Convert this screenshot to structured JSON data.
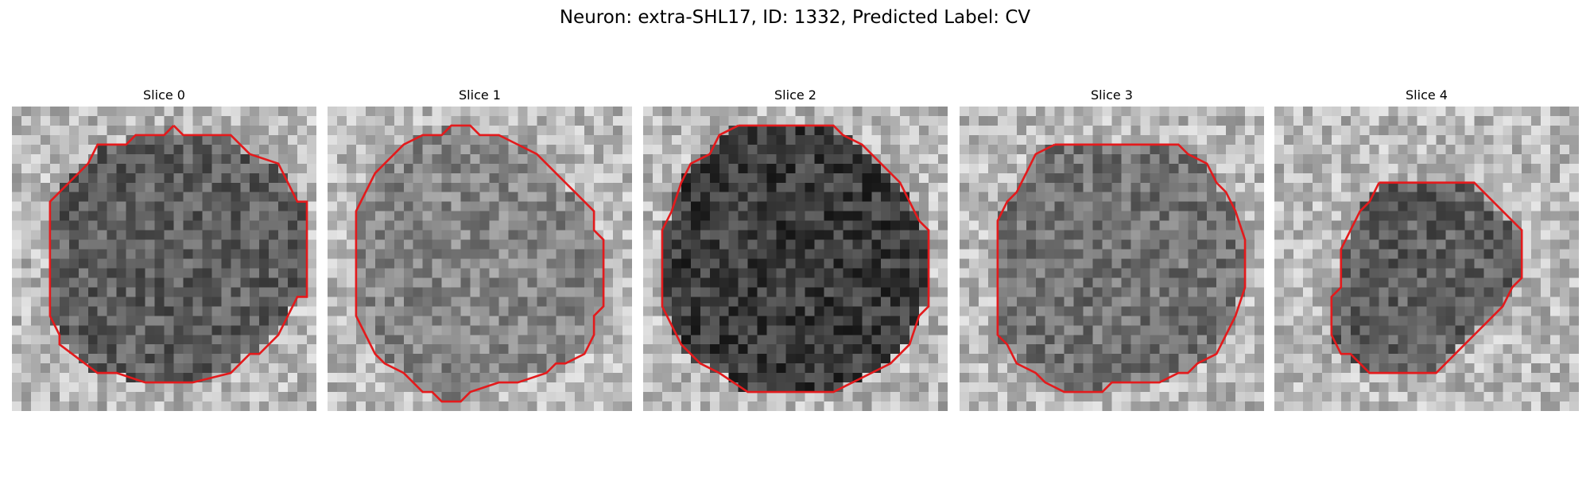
{
  "figure": {
    "title": "Neuron: extra-SHL17, ID: 1332, Predicted Label: CV",
    "contour_color": "#e31a1c",
    "grid_size": 32,
    "panels": [
      {
        "title": "Slice 0",
        "interior": "medium-dark",
        "contour": [
          [
            17,
            2
          ],
          [
            18,
            3
          ],
          [
            23,
            3
          ],
          [
            25,
            5
          ],
          [
            28,
            6
          ],
          [
            29,
            8
          ],
          [
            30,
            10
          ],
          [
            31,
            10
          ],
          [
            31,
            20
          ],
          [
            30,
            20
          ],
          [
            29,
            22
          ],
          [
            28,
            24
          ],
          [
            26,
            26
          ],
          [
            25,
            26
          ],
          [
            23,
            28
          ],
          [
            19,
            29
          ],
          [
            14,
            29
          ],
          [
            11,
            28
          ],
          [
            9,
            28
          ],
          [
            5,
            25
          ],
          [
            5,
            24
          ],
          [
            4,
            22
          ],
          [
            4,
            10
          ],
          [
            5,
            9
          ],
          [
            6,
            8
          ],
          [
            8,
            6
          ],
          [
            9,
            4
          ],
          [
            12,
            4
          ],
          [
            13,
            3
          ],
          [
            16,
            3
          ],
          [
            17,
            2
          ]
        ]
      },
      {
        "title": "Slice 1",
        "interior": "medium-light",
        "contour": [
          [
            14,
            2
          ],
          [
            15,
            2
          ],
          [
            16,
            3
          ],
          [
            18,
            3
          ],
          [
            20,
            4
          ],
          [
            22,
            5
          ],
          [
            23,
            6
          ],
          [
            24,
            7
          ],
          [
            25,
            8
          ],
          [
            26,
            9
          ],
          [
            27,
            10
          ],
          [
            28,
            11
          ],
          [
            28,
            13
          ],
          [
            29,
            14
          ],
          [
            29,
            21
          ],
          [
            28,
            22
          ],
          [
            28,
            24
          ],
          [
            27,
            26
          ],
          [
            25,
            27
          ],
          [
            24,
            27
          ],
          [
            23,
            28
          ],
          [
            20,
            29
          ],
          [
            18,
            29
          ],
          [
            15,
            30
          ],
          [
            14,
            31
          ],
          [
            12,
            31
          ],
          [
            11,
            30
          ],
          [
            10,
            30
          ],
          [
            9,
            29
          ],
          [
            8,
            28
          ],
          [
            6,
            27
          ],
          [
            5,
            26
          ],
          [
            4,
            24
          ],
          [
            3,
            22
          ],
          [
            3,
            11
          ],
          [
            4,
            9
          ],
          [
            5,
            7
          ],
          [
            7,
            5
          ],
          [
            8,
            4
          ],
          [
            10,
            3
          ],
          [
            12,
            3
          ],
          [
            13,
            2
          ],
          [
            14,
            2
          ]
        ]
      },
      {
        "title": "Slice 2",
        "interior": "dark",
        "contour": [
          [
            10,
            2
          ],
          [
            20,
            2
          ],
          [
            21,
            3
          ],
          [
            23,
            4
          ],
          [
            25,
            6
          ],
          [
            27,
            8
          ],
          [
            28,
            10
          ],
          [
            29,
            12
          ],
          [
            30,
            13
          ],
          [
            30,
            21
          ],
          [
            29,
            22
          ],
          [
            28,
            25
          ],
          [
            26,
            27
          ],
          [
            24,
            28
          ],
          [
            22,
            29
          ],
          [
            20,
            30
          ],
          [
            11,
            30
          ],
          [
            8,
            28
          ],
          [
            6,
            27
          ],
          [
            4,
            25
          ],
          [
            3,
            23
          ],
          [
            2,
            21
          ],
          [
            2,
            13
          ],
          [
            3,
            11
          ],
          [
            4,
            8
          ],
          [
            5,
            6
          ],
          [
            7,
            5
          ],
          [
            8,
            3
          ],
          [
            10,
            2
          ]
        ]
      },
      {
        "title": "Slice 3",
        "interior": "medium",
        "contour": [
          [
            10,
            4
          ],
          [
            23,
            4
          ],
          [
            24,
            5
          ],
          [
            26,
            6
          ],
          [
            27,
            8
          ],
          [
            28,
            9
          ],
          [
            29,
            11
          ],
          [
            30,
            14
          ],
          [
            30,
            19
          ],
          [
            29,
            22
          ],
          [
            28,
            24
          ],
          [
            27,
            26
          ],
          [
            25,
            27
          ],
          [
            24,
            28
          ],
          [
            23,
            28
          ],
          [
            21,
            29
          ],
          [
            16,
            29
          ],
          [
            15,
            30
          ],
          [
            11,
            30
          ],
          [
            9,
            29
          ],
          [
            8,
            28
          ],
          [
            6,
            27
          ],
          [
            5,
            25
          ],
          [
            4,
            24
          ],
          [
            4,
            12
          ],
          [
            5,
            10
          ],
          [
            6,
            9
          ],
          [
            7,
            7
          ],
          [
            8,
            5
          ],
          [
            10,
            4
          ]
        ]
      },
      {
        "title": "Slice 4",
        "interior": "medium-dark",
        "contour": [
          [
            11,
            8
          ],
          [
            21,
            8
          ],
          [
            22,
            9
          ],
          [
            23,
            10
          ],
          [
            24,
            11
          ],
          [
            25,
            12
          ],
          [
            26,
            13
          ],
          [
            26,
            18
          ],
          [
            25,
            19
          ],
          [
            24,
            21
          ],
          [
            23,
            22
          ],
          [
            22,
            23
          ],
          [
            21,
            24
          ],
          [
            20,
            25
          ],
          [
            19,
            26
          ],
          [
            18,
            27
          ],
          [
            17,
            28
          ],
          [
            10,
            28
          ],
          [
            9,
            27
          ],
          [
            8,
            26
          ],
          [
            7,
            26
          ],
          [
            6,
            24
          ],
          [
            6,
            20
          ],
          [
            7,
            19
          ],
          [
            7,
            15
          ],
          [
            8,
            13
          ],
          [
            9,
            11
          ],
          [
            10,
            10
          ],
          [
            11,
            8
          ]
        ]
      }
    ]
  }
}
